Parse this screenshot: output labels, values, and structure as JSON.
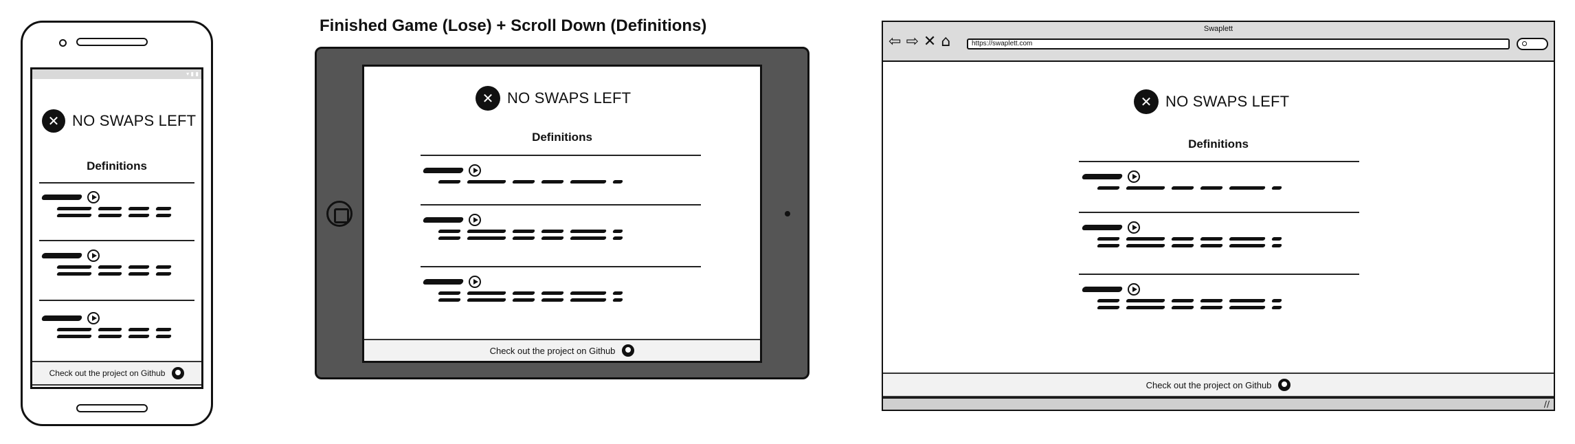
{
  "section_title": "Finished Game (Lose) + Scroll Down (Definitions)",
  "game": {
    "status_icon": "x-circle-icon",
    "status_text": "NO SWAPS LEFT",
    "definitions_title": "Definitions",
    "definition_count": 3,
    "footer_text": "Check out the project on Github",
    "footer_icon": "github-icon"
  },
  "browser": {
    "title": "Swaplett",
    "url": "https://swaplett.com",
    "nav_icons": [
      "back-icon",
      "forward-icon",
      "close-icon",
      "home-icon"
    ]
  },
  "colors": {
    "ink": "#111111",
    "tablet_bezel": "#555555",
    "browser_chrome": "#dcdcdc",
    "footer_bg": "#f2f2f2"
  }
}
